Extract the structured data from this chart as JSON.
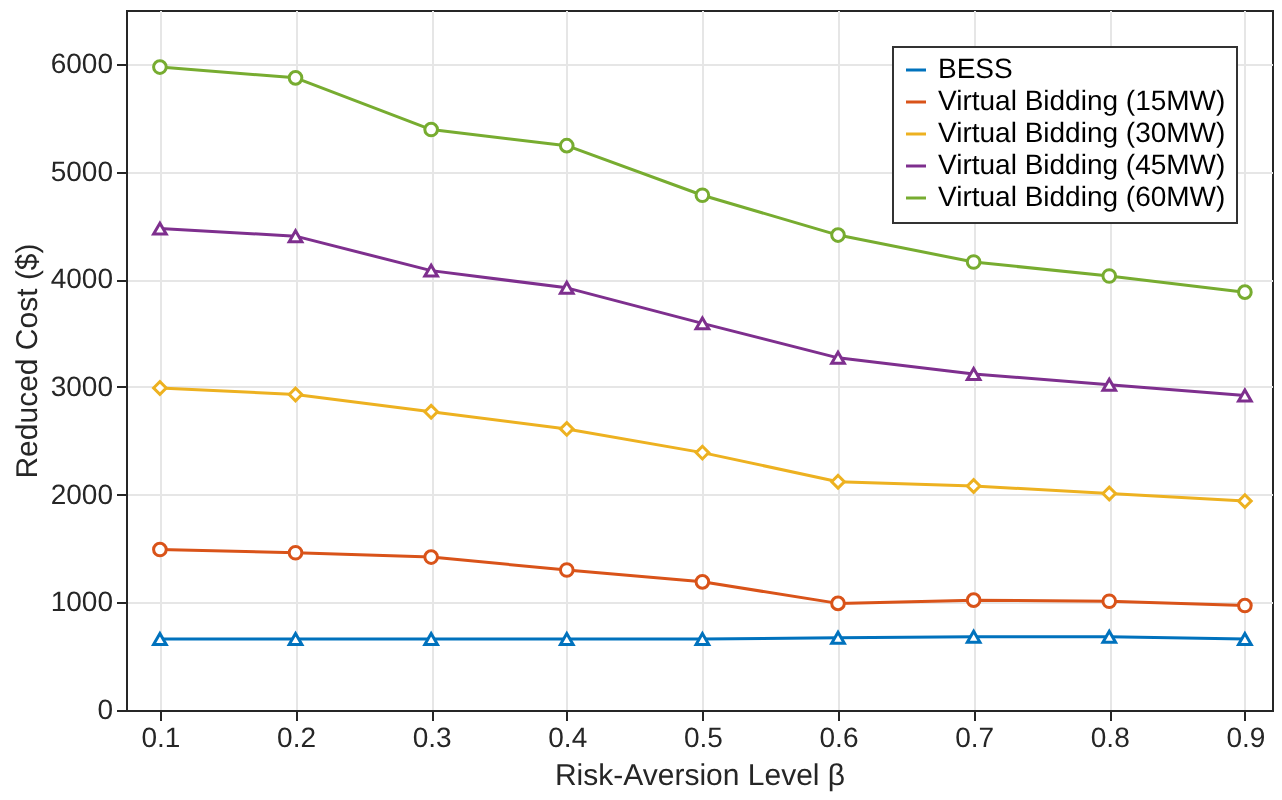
{
  "chart_data": {
    "type": "line",
    "xlabel": "Risk-Aversion Level β",
    "ylabel": "Reduced Cost ($)",
    "x": [
      0.1,
      0.2,
      0.3,
      0.4,
      0.5,
      0.6,
      0.7,
      0.8,
      0.9
    ],
    "series": [
      {
        "name": "BESS",
        "color": "#0072bd",
        "marker": "triangle",
        "values": [
          660,
          660,
          660,
          660,
          660,
          670,
          680,
          680,
          660
        ]
      },
      {
        "name": "Virtual Bidding (15MW)",
        "color": "#d95319",
        "marker": "circle",
        "values": [
          1490,
          1460,
          1420,
          1300,
          1190,
          990,
          1020,
          1010,
          970
        ]
      },
      {
        "name": "Virtual Bidding (30MW)",
        "color": "#edb120",
        "marker": "diamond",
        "values": [
          2990,
          2930,
          2770,
          2610,
          2390,
          2120,
          2080,
          2010,
          1940
        ]
      },
      {
        "name": "Virtual Bidding (45MW)",
        "color": "#7e2f8e",
        "marker": "triangle",
        "values": [
          4470,
          4400,
          4080,
          3920,
          3590,
          3270,
          3120,
          3020,
          2920
        ]
      },
      {
        "name": "Virtual Bidding (60MW)",
        "color": "#77ac30",
        "marker": "circle",
        "values": [
          5970,
          5870,
          5390,
          5240,
          4780,
          4410,
          4160,
          4030,
          3880
        ]
      }
    ],
    "xlim": [
      0.075,
      0.92
    ],
    "xticks": [
      0.1,
      0.2,
      0.3,
      0.4,
      0.5,
      0.6,
      0.7,
      0.8,
      0.9
    ],
    "ylim": [
      0,
      6500
    ],
    "yticks": [
      0,
      1000,
      2000,
      3000,
      4000,
      5000,
      6000
    ],
    "grid": true,
    "legend": "top right",
    "line_style": "solid"
  }
}
